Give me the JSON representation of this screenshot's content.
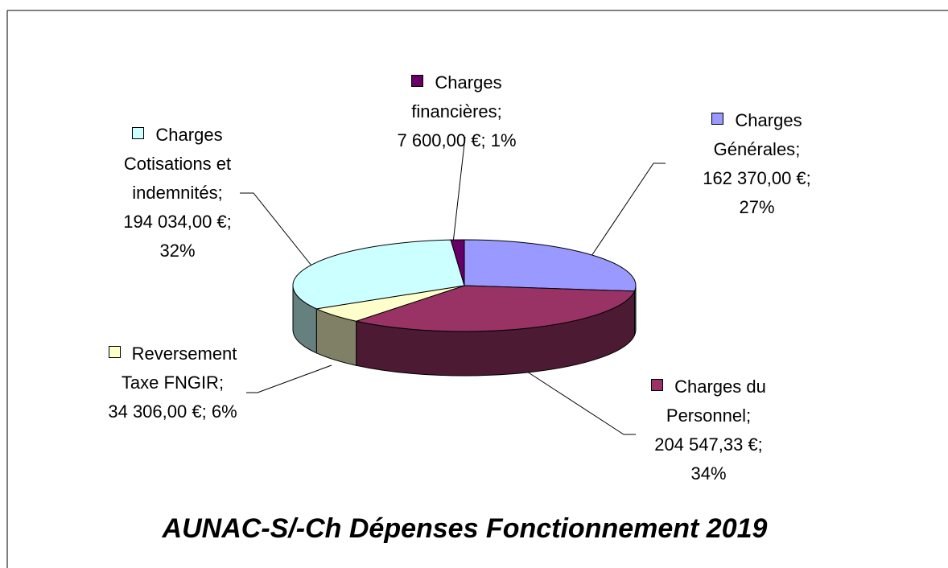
{
  "chart_data": {
    "type": "pie",
    "title": "AUNAC-S/-Ch Dépenses Fonctionnement 2019",
    "categories": [
      "Charges Générales",
      "Charges du Personnel",
      "Reversement Taxe FNGIR",
      "Charges Cotisations et indemnités",
      "Charges financières"
    ],
    "values": [
      162370,
      204547.33,
      34306,
      194034,
      7600
    ],
    "value_labels": [
      "162 370,00 €",
      "204 547,33 €",
      "34 306,00 €",
      "194 034,00 €",
      "7 600,00 €"
    ],
    "percentages": [
      27,
      34,
      6,
      32,
      1
    ],
    "percent_labels": [
      "27%",
      "34%",
      "6%",
      "32%",
      "1%"
    ],
    "separator": ";",
    "colors": [
      "#9999ff",
      "#993366",
      "#ffffcc",
      "#ccffff",
      "#660066"
    ]
  }
}
